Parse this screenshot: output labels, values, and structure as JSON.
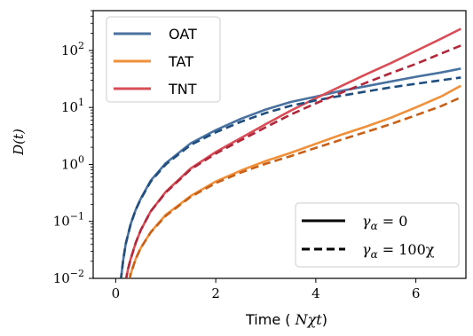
{
  "chart_data": {
    "type": "line",
    "title": "",
    "xlabel": "Time (Nχt)",
    "ylabel": "D(t)",
    "xlim": [
      -0.45,
      7.0
    ],
    "ylim": [
      0.01,
      500
    ],
    "yscale": "log",
    "xticks": [
      0,
      2,
      4,
      6
    ],
    "xtick_labels": [
      "0",
      "2",
      "4",
      "6"
    ],
    "yticks": [
      0.01,
      0.1,
      1,
      10,
      100
    ],
    "ytick_labels": [
      {
        "base": "10",
        "exp": "−2"
      },
      {
        "base": "10",
        "exp": "−1"
      },
      {
        "base": "10",
        "exp": "0"
      },
      {
        "base": "10",
        "exp": "1"
      },
      {
        "base": "10",
        "exp": "2"
      }
    ],
    "grid": false,
    "colors": {
      "OAT": "#4a72a0",
      "TAT": "#f0903a",
      "TNT": "#d94d57"
    },
    "series": [
      {
        "name": "OAT",
        "style": "solid",
        "color": "#4a72a0",
        "x": [
          0.1,
          0.15,
          0.2,
          0.3,
          0.4,
          0.5,
          0.7,
          1.0,
          1.5,
          2.0,
          2.5,
          3.0,
          3.5,
          4.0,
          4.5,
          5.0,
          5.5,
          6.0,
          6.5,
          6.9
        ],
        "y": [
          0.009,
          0.021,
          0.04,
          0.09,
          0.16,
          0.25,
          0.52,
          1.05,
          2.35,
          4.0,
          6.3,
          9.2,
          12.5,
          15.5,
          19.5,
          23.5,
          28.5,
          34.5,
          41.0,
          48.0
        ]
      },
      {
        "name": "TAT",
        "style": "solid",
        "color": "#f0903a",
        "x": [
          0.27,
          0.3,
          0.4,
          0.5,
          0.7,
          1.0,
          1.5,
          2.0,
          2.5,
          3.0,
          3.5,
          4.0,
          4.5,
          5.0,
          5.5,
          6.0,
          6.5,
          6.9
        ],
        "y": [
          0.009,
          0.012,
          0.022,
          0.034,
          0.065,
          0.13,
          0.28,
          0.5,
          0.78,
          1.15,
          1.6,
          2.3,
          3.3,
          4.6,
          6.6,
          10.0,
          15.5,
          24.0
        ]
      },
      {
        "name": "TNT",
        "style": "solid",
        "color": "#d94d57",
        "x": [
          0.2,
          0.25,
          0.3,
          0.4,
          0.5,
          0.7,
          1.0,
          1.5,
          2.0,
          2.5,
          3.0,
          3.5,
          4.0,
          4.5,
          5.0,
          5.5,
          6.0,
          6.5,
          6.9
        ],
        "y": [
          0.009,
          0.015,
          0.022,
          0.042,
          0.07,
          0.15,
          0.33,
          0.85,
          1.65,
          2.9,
          5.1,
          8.8,
          14.5,
          23.5,
          38.0,
          60.0,
          98.0,
          160.0,
          240.0
        ]
      },
      {
        "name": "OAT",
        "style": "dashed",
        "color": "#1f4e7e",
        "x": [
          0.1,
          0.15,
          0.2,
          0.3,
          0.4,
          0.5,
          0.7,
          1.0,
          1.5,
          2.0,
          2.5,
          3.0,
          3.5,
          4.0,
          4.5,
          5.0,
          5.5,
          6.0,
          6.5,
          6.9
        ],
        "y": [
          0.009,
          0.021,
          0.04,
          0.09,
          0.16,
          0.245,
          0.5,
          1.0,
          2.2,
          3.65,
          5.6,
          8.0,
          10.7,
          13.3,
          16.0,
          19.0,
          22.5,
          26.0,
          30.0,
          33.5
        ]
      },
      {
        "name": "TAT",
        "style": "dashed",
        "color": "#c96018",
        "x": [
          0.27,
          0.3,
          0.4,
          0.5,
          0.7,
          1.0,
          1.5,
          2.0,
          2.5,
          3.0,
          3.5,
          4.0,
          4.5,
          5.0,
          5.5,
          6.0,
          6.5,
          6.9
        ],
        "y": [
          0.009,
          0.012,
          0.022,
          0.034,
          0.064,
          0.125,
          0.27,
          0.47,
          0.72,
          1.03,
          1.4,
          1.95,
          2.7,
          3.7,
          5.1,
          7.3,
          10.5,
          15.0
        ]
      },
      {
        "name": "TNT",
        "style": "dashed",
        "color": "#b0283a",
        "x": [
          0.2,
          0.25,
          0.3,
          0.4,
          0.5,
          0.7,
          1.0,
          1.5,
          2.0,
          2.5,
          3.0,
          3.5,
          4.0,
          4.5,
          5.0,
          5.5,
          6.0,
          6.5,
          6.9
        ],
        "y": [
          0.009,
          0.015,
          0.022,
          0.042,
          0.07,
          0.15,
          0.32,
          0.82,
          1.55,
          2.65,
          4.5,
          7.5,
          11.8,
          18.0,
          27.0,
          40.0,
          58.0,
          88.0,
          122.0
        ]
      }
    ],
    "legends": [
      {
        "placement": "top-left",
        "entries": [
          {
            "label": "OAT",
            "color": "#4a72a0",
            "style": "solid"
          },
          {
            "label": "TAT",
            "color": "#f0903a",
            "style": "solid"
          },
          {
            "label": "TNT",
            "color": "#d94d57",
            "style": "solid"
          }
        ]
      },
      {
        "placement": "bottom-right",
        "entries": [
          {
            "label": "γα = 0",
            "color": "#000000",
            "style": "solid"
          },
          {
            "label": "γα = 100χ",
            "color": "#000000",
            "style": "dashed"
          }
        ]
      }
    ]
  }
}
